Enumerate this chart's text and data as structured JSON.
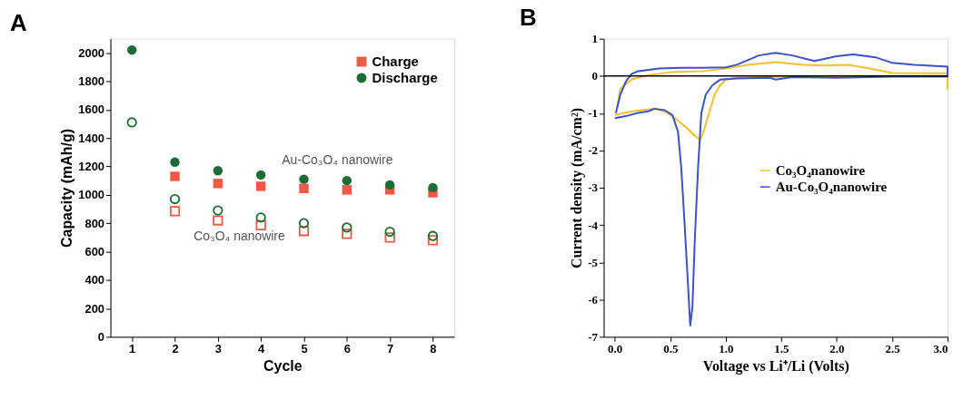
{
  "chart_data": [
    {
      "type": "scatter",
      "title": "A",
      "xlabel": "Cycle",
      "ylabel": "Capacity (mAh/g)",
      "x": [
        1,
        2,
        3,
        4,
        5,
        6,
        7,
        8
      ],
      "xlim": [
        0.5,
        8.5
      ],
      "xticks": [
        1,
        2,
        3,
        4,
        5,
        6,
        7,
        8
      ],
      "ylim": [
        0,
        2100
      ],
      "yticks": [
        0,
        200,
        400,
        600,
        800,
        1000,
        1200,
        1400,
        1600,
        1800,
        2000
      ],
      "grid": false,
      "legend": "top right",
      "series": [
        {
          "name": "Charge",
          "color": "#ef5a48",
          "marker": "square",
          "values": [
            null,
            1130,
            1080,
            1060,
            1045,
            1035,
            1035,
            1015
          ]
        },
        {
          "name": "Discharge",
          "color": "#1e6b35",
          "marker": "circle",
          "values": [
            2020,
            1230,
            1170,
            1140,
            1110,
            1100,
            1070,
            1050
          ]
        },
        {
          "color": "#ef5a48",
          "marker": "square",
          "values": [
            null,
            885,
            820,
            785,
            745,
            725,
            700,
            680
          ]
        },
        {
          "color": "#1e6b35",
          "marker": "circle",
          "values": [
            1510,
            970,
            890,
            840,
            800,
            770,
            740,
            710
          ]
        }
      ],
      "annotations": [
        "Au-Co₃O₄ nanowire",
        "Co₃O₄ nanowire"
      ]
    },
    {
      "type": "line",
      "title": "B",
      "xlabel": "Voltage vs Li⁺/Li (Volts)",
      "ylabel": "Current density (mA/cm²)",
      "xlim": [
        -0.1,
        3.0
      ],
      "xticks": [
        {
          "value": 0,
          "label": "0.0"
        },
        0.5,
        {
          "value": 1,
          "label": "1.0"
        },
        1.5,
        {
          "value": 2,
          "label": "2.0"
        },
        2.5,
        {
          "value": 3,
          "label": "3.0"
        }
      ],
      "ylim": [
        -7,
        1
      ],
      "yticks": [
        -7,
        -6,
        -5,
        -4,
        -3,
        -2,
        -1,
        0,
        1
      ],
      "grid": false,
      "legend": "center",
      "marker": "none",
      "line_style": "solid",
      "ref_lines": [
        {
          "axis": "y",
          "value": 0,
          "color": "#000000"
        }
      ],
      "series": [
        {
          "name": "Co₃O₄nanowire",
          "color": "#f2c12e",
          "x": [
            0.0,
            0.1,
            0.2,
            0.35,
            0.45,
            0.55,
            0.65,
            0.72,
            0.77,
            0.8,
            0.85,
            0.9,
            0.95,
            1.0,
            1.1,
            1.5,
            2.0,
            2.5,
            3.0,
            3.0,
            3.0,
            2.5,
            2.3,
            2.1,
            1.9,
            1.7,
            1.45,
            1.2,
            1.0,
            0.8,
            0.5,
            0.3,
            0.15,
            0.05,
            0.02
          ],
          "values": [
            -1.05,
            -0.98,
            -0.93,
            -0.88,
            -0.95,
            -1.15,
            -1.4,
            -1.6,
            -1.72,
            -1.5,
            -1.0,
            -0.5,
            -0.25,
            -0.1,
            -0.05,
            -0.02,
            0.0,
            0.0,
            0.0,
            -0.35,
            0.07,
            0.08,
            0.2,
            0.3,
            0.28,
            0.3,
            0.37,
            0.3,
            0.2,
            0.13,
            0.1,
            0.02,
            -0.1,
            -0.35,
            -0.85
          ]
        },
        {
          "name": "Au-Co₃O₄nanowire",
          "color": "#3d52c4",
          "x": [
            0.0,
            0.1,
            0.2,
            0.3,
            0.36,
            0.45,
            0.52,
            0.57,
            0.6,
            0.63,
            0.66,
            0.68,
            0.7,
            0.72,
            0.75,
            0.78,
            0.82,
            0.88,
            0.95,
            1.1,
            1.4,
            1.45,
            1.6,
            2.0,
            2.5,
            3.0,
            3.0,
            2.7,
            2.5,
            2.35,
            2.15,
            2.0,
            1.8,
            1.6,
            1.45,
            1.3,
            1.1,
            1.0,
            0.8,
            0.6,
            0.4,
            0.2,
            0.15,
            0.1,
            0.05,
            0.01
          ],
          "values": [
            -1.13,
            -1.08,
            -1.0,
            -0.95,
            -0.88,
            -0.92,
            -1.05,
            -1.5,
            -2.5,
            -4.0,
            -5.6,
            -6.7,
            -6.2,
            -4.5,
            -2.5,
            -1.0,
            -0.5,
            -0.25,
            -0.1,
            -0.07,
            -0.05,
            -0.1,
            -0.03,
            -0.05,
            -0.02,
            -0.02,
            0.25,
            0.3,
            0.35,
            0.5,
            0.58,
            0.53,
            0.4,
            0.55,
            0.62,
            0.55,
            0.3,
            0.23,
            0.22,
            0.22,
            0.2,
            0.12,
            0.05,
            -0.15,
            -0.5,
            -1.0
          ]
        }
      ]
    }
  ]
}
